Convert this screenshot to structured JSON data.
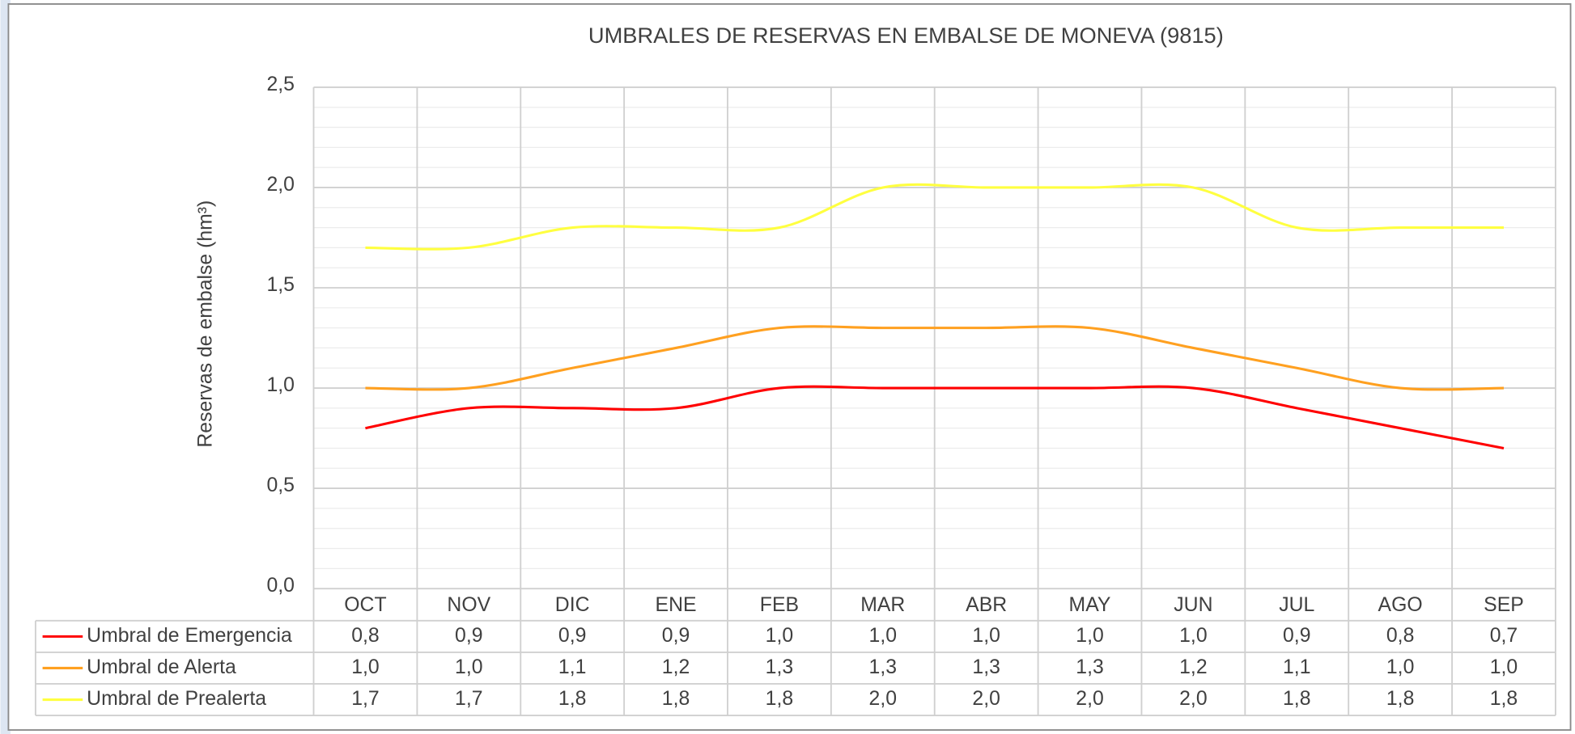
{
  "chart_data": {
    "type": "line",
    "title": "UMBRALES DE RESERVAS EN EMBALSE DE MONEVA (9815)",
    "y_label": "Reservas de embalse (hm³)",
    "categories": [
      "OCT",
      "NOV",
      "DIC",
      "ENE",
      "FEB",
      "MAR",
      "ABR",
      "MAY",
      "JUN",
      "JUL",
      "AGO",
      "SEP"
    ],
    "series": [
      {
        "name": "Umbral de Emergencia",
        "color": "#ff0000",
        "values": [
          0.8,
          0.9,
          0.9,
          0.9,
          1.0,
          1.0,
          1.0,
          1.0,
          1.0,
          0.9,
          0.8,
          0.7
        ],
        "value_labels": [
          "0,8",
          "0,9",
          "0,9",
          "0,9",
          "1,0",
          "1,0",
          "1,0",
          "1,0",
          "1,0",
          "0,9",
          "0,8",
          "0,7"
        ]
      },
      {
        "name": "Umbral de Alerta",
        "color": "#ffa020",
        "values": [
          1.0,
          1.0,
          1.1,
          1.2,
          1.3,
          1.3,
          1.3,
          1.3,
          1.2,
          1.1,
          1.0,
          1.0
        ],
        "value_labels": [
          "1,0",
          "1,0",
          "1,1",
          "1,2",
          "1,3",
          "1,3",
          "1,3",
          "1,3",
          "1,2",
          "1,1",
          "1,0",
          "1,0"
        ]
      },
      {
        "name": "Umbral de Prealerta",
        "color": "#ffff40",
        "values": [
          1.7,
          1.7,
          1.8,
          1.8,
          1.8,
          2.0,
          2.0,
          2.0,
          2.0,
          1.8,
          1.8,
          1.8
        ],
        "value_labels": [
          "1,7",
          "1,7",
          "1,8",
          "1,8",
          "1,8",
          "2,0",
          "2,0",
          "2,0",
          "2,0",
          "1,8",
          "1,8",
          "1,8"
        ]
      }
    ],
    "ylim": [
      0,
      2.5
    ],
    "yticks": [
      {
        "value": 0,
        "label": "0,0"
      },
      {
        "value": 0.5,
        "label": "0,5"
      },
      {
        "value": 1,
        "label": "1,0"
      },
      {
        "value": 1.5,
        "label": "1,5"
      },
      {
        "value": 2,
        "label": "2,0"
      },
      {
        "value": 2.5,
        "label": "2,5"
      }
    ],
    "grid": true
  }
}
